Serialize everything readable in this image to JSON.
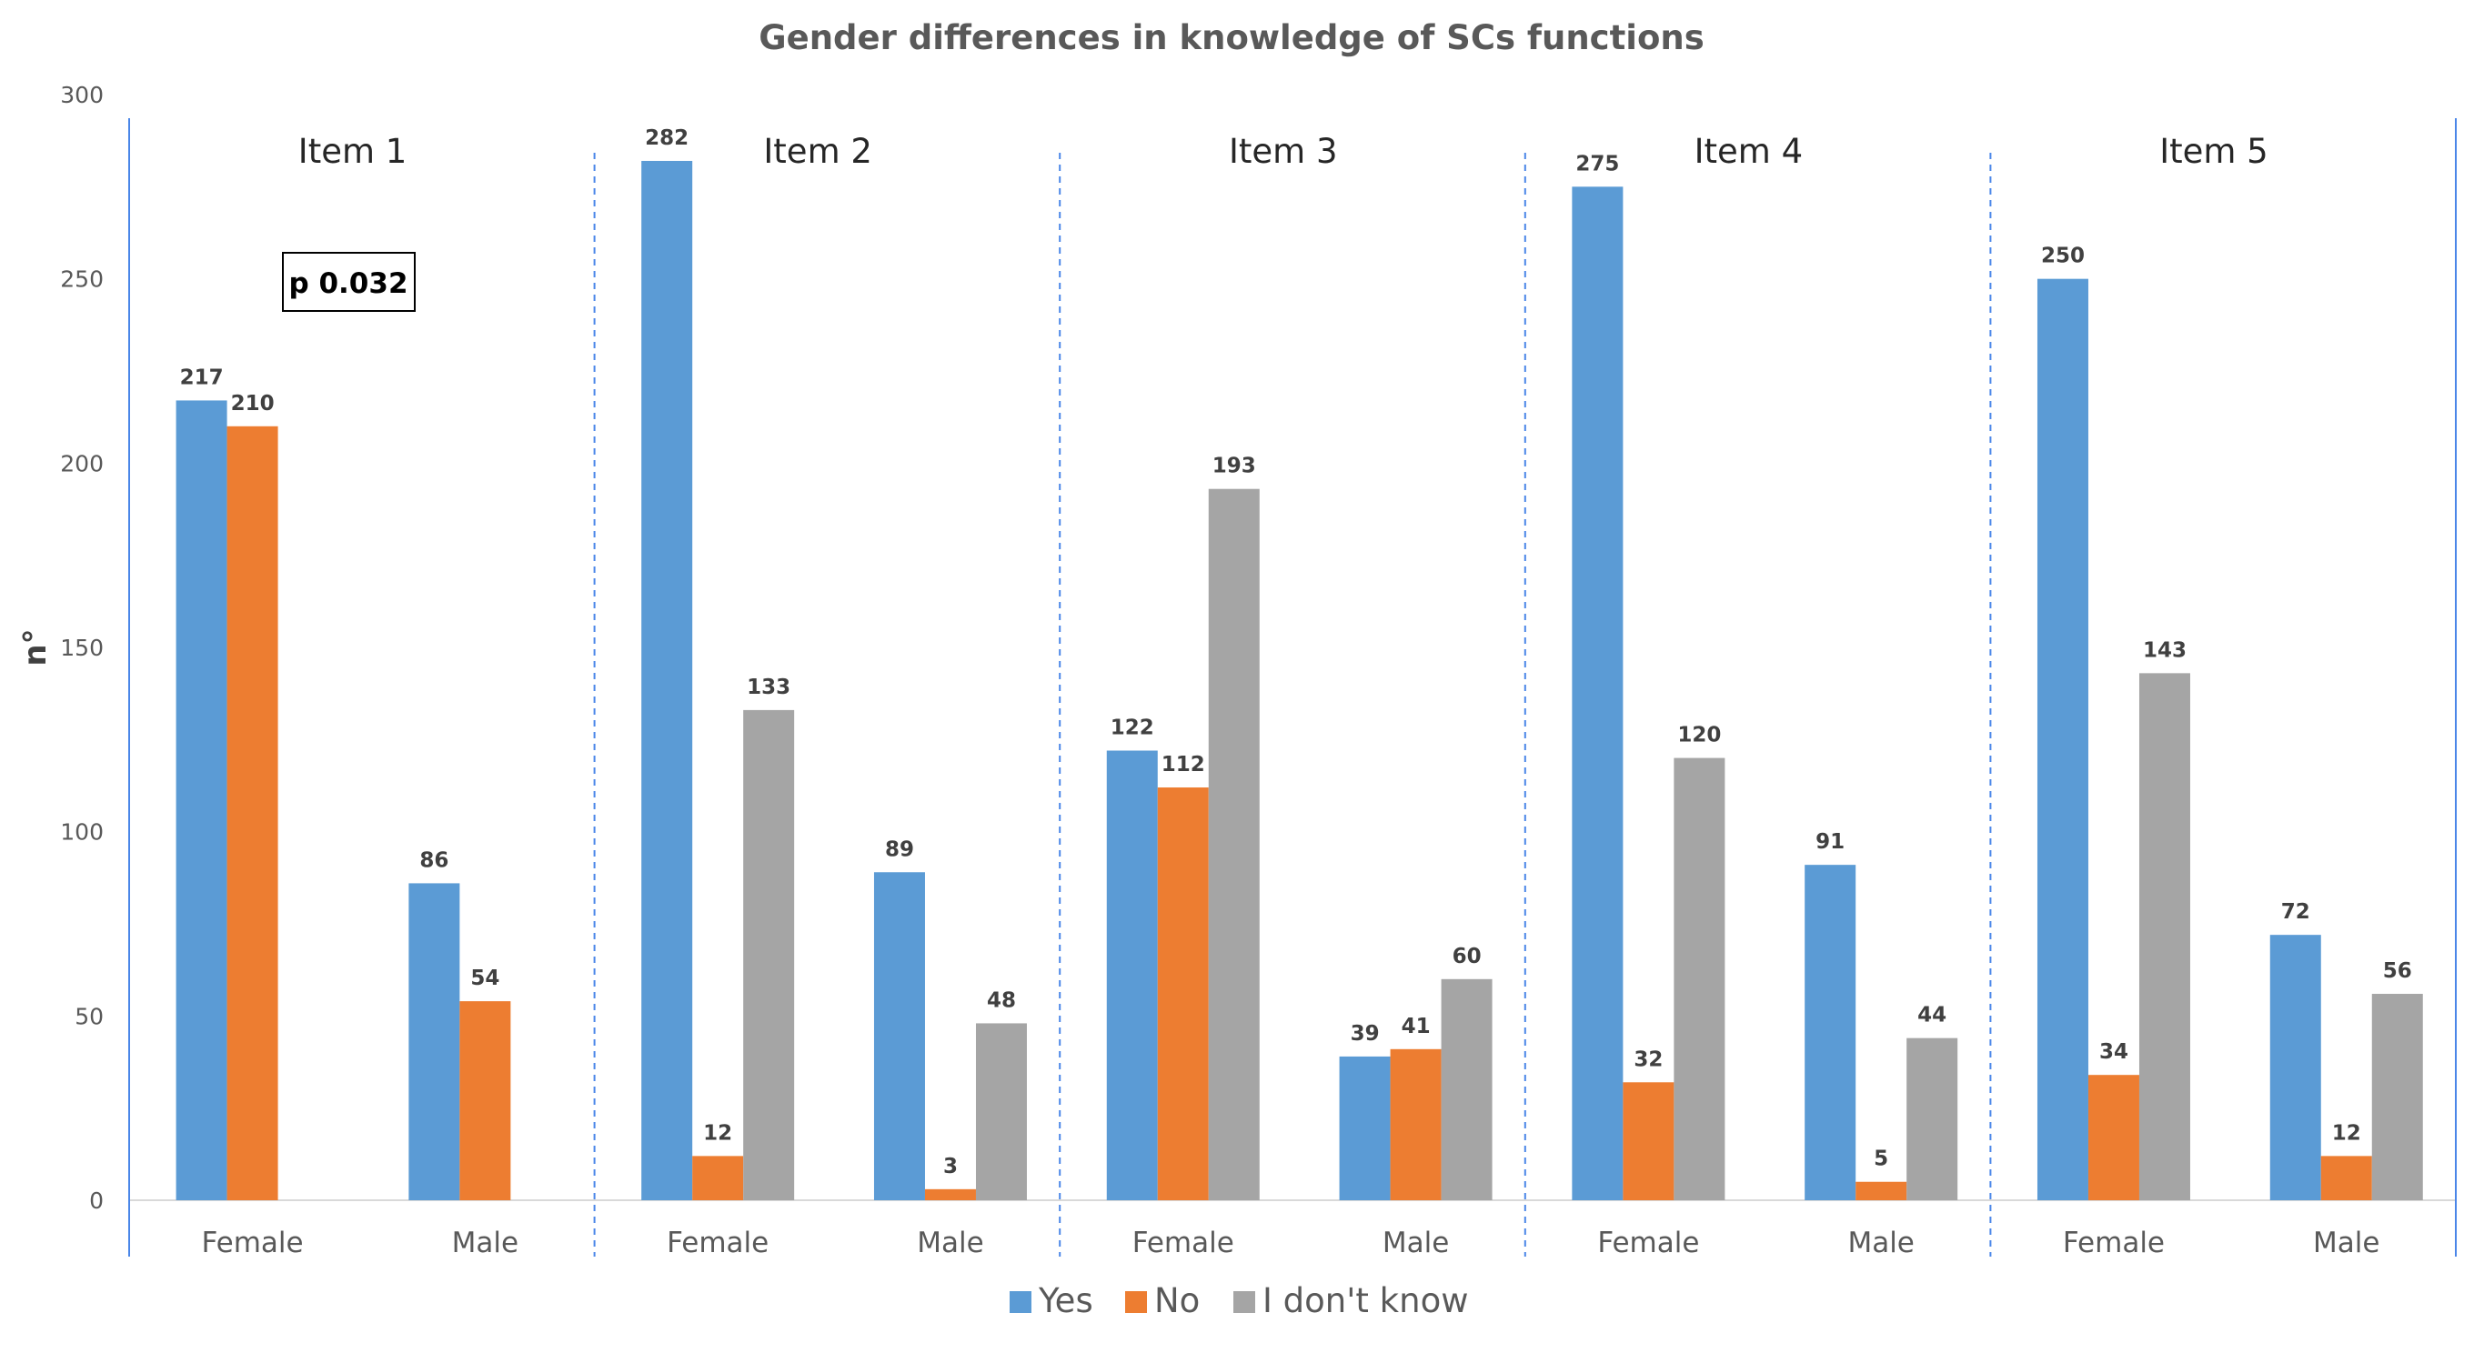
{
  "chart_data": {
    "type": "bar",
    "title": "Gender differences in knowledge of SCs functions",
    "ylabel": "n°",
    "xlabel": "",
    "ylim": [
      0,
      300
    ],
    "yticks": [
      0,
      50,
      100,
      150,
      200,
      250,
      300
    ],
    "grid": false,
    "legend_position": "bottom",
    "annotation": "p 0.032",
    "series": [
      {
        "name": "Yes",
        "color": "#5B9BD5"
      },
      {
        "name": "No",
        "color": "#ED7D31"
      },
      {
        "name": "I don't know",
        "color": "#A5A5A5"
      }
    ],
    "panels": [
      {
        "label": "Item 1",
        "groups": [
          {
            "label": "Female",
            "values": [
              217,
              210,
              null
            ]
          },
          {
            "label": "Male",
            "values": [
              86,
              54,
              null
            ]
          }
        ]
      },
      {
        "label": "Item 2",
        "groups": [
          {
            "label": "Female",
            "values": [
              282,
              12,
              133
            ]
          },
          {
            "label": "Male",
            "values": [
              89,
              3,
              48
            ]
          }
        ]
      },
      {
        "label": "Item 3",
        "groups": [
          {
            "label": "Female",
            "values": [
              122,
              112,
              193
            ]
          },
          {
            "label": "Male",
            "values": [
              39,
              41,
              60
            ]
          }
        ]
      },
      {
        "label": "Item 4",
        "groups": [
          {
            "label": "Female",
            "values": [
              275,
              32,
              120
            ]
          },
          {
            "label": "Male",
            "values": [
              91,
              5,
              44
            ]
          }
        ]
      },
      {
        "label": "Item 5",
        "groups": [
          {
            "label": "Female",
            "values": [
              250,
              34,
              143
            ]
          },
          {
            "label": "Male",
            "values": [
              72,
              12,
              56
            ]
          }
        ]
      }
    ]
  }
}
